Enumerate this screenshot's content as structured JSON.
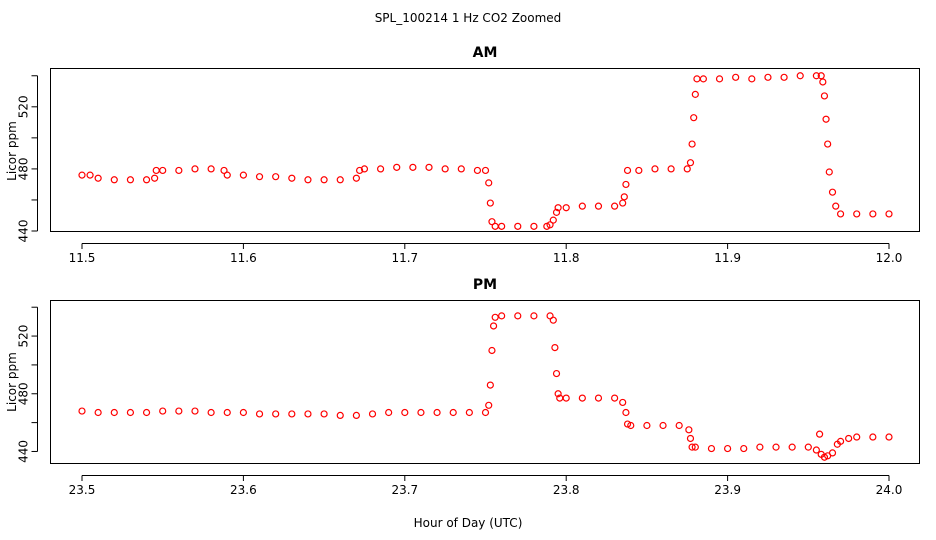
{
  "figure": {
    "title": "SPL_100214  1 Hz CO2 Zoomed",
    "xlabel": "Hour of Day (UTC)"
  },
  "chart_data": [
    {
      "type": "scatter",
      "title": "AM",
      "ylabel": "Licor ppm",
      "xlim": [
        11.5,
        12.0
      ],
      "ylim": [
        440,
        545
      ],
      "xticks": [
        "11.5",
        "11.6",
        "11.7",
        "11.8",
        "11.9",
        "12.0"
      ],
      "yticks": [
        "440",
        "480",
        "520"
      ],
      "series": [
        {
          "color": "#ff0000",
          "marker": "open-circle",
          "x": [
            11.5,
            11.505,
            11.51,
            11.52,
            11.53,
            11.54,
            11.545,
            11.546,
            11.55,
            11.56,
            11.57,
            11.58,
            11.588,
            11.59,
            11.6,
            11.61,
            11.62,
            11.63,
            11.64,
            11.65,
            11.66,
            11.67,
            11.672,
            11.675,
            11.685,
            11.695,
            11.705,
            11.715,
            11.725,
            11.735,
            11.745,
            11.75,
            11.752,
            11.753,
            11.754,
            11.756,
            11.76,
            11.77,
            11.78,
            11.788,
            11.79,
            11.792,
            11.794,
            11.795,
            11.8,
            11.81,
            11.82,
            11.83,
            11.835,
            11.836,
            11.837,
            11.838,
            11.845,
            11.855,
            11.865,
            11.875,
            11.877,
            11.878,
            11.879,
            11.88,
            11.881,
            11.885,
            11.895,
            11.905,
            11.915,
            11.925,
            11.935,
            11.945,
            11.955,
            11.958,
            11.959,
            11.96,
            11.961,
            11.962,
            11.963,
            11.965,
            11.967,
            11.97,
            11.98,
            11.99,
            12.0
          ],
          "y": [
            476,
            476,
            474,
            473,
            473,
            473,
            474,
            479,
            479,
            479,
            480,
            480,
            479,
            476,
            476,
            475,
            475,
            474,
            473,
            473,
            473,
            474,
            479,
            480,
            480,
            481,
            481,
            481,
            480,
            480,
            479,
            479,
            471,
            458,
            446,
            443,
            443,
            443,
            443,
            443,
            444,
            447,
            452,
            455,
            455,
            456,
            456,
            456,
            458,
            462,
            470,
            479,
            479,
            480,
            480,
            480,
            484,
            496,
            513,
            528,
            538,
            538,
            538,
            539,
            538,
            539,
            539,
            540,
            540,
            540,
            536,
            527,
            512,
            496,
            478,
            465,
            456,
            451,
            451,
            451,
            451
          ]
        }
      ]
    },
    {
      "type": "scatter",
      "title": "PM",
      "ylabel": "Licor ppm",
      "xlim": [
        23.5,
        24.0
      ],
      "ylim": [
        432,
        545
      ],
      "xticks": [
        "23.5",
        "23.6",
        "23.7",
        "23.8",
        "23.9",
        "24.0"
      ],
      "yticks": [
        "440",
        "480",
        "520"
      ],
      "series": [
        {
          "color": "#ff0000",
          "marker": "open-circle",
          "x": [
            23.5,
            23.51,
            23.52,
            23.53,
            23.54,
            23.55,
            23.56,
            23.57,
            23.58,
            23.59,
            23.6,
            23.61,
            23.62,
            23.63,
            23.64,
            23.65,
            23.66,
            23.67,
            23.68,
            23.69,
            23.7,
            23.71,
            23.72,
            23.73,
            23.74,
            23.75,
            23.752,
            23.753,
            23.754,
            23.755,
            23.756,
            23.76,
            23.77,
            23.78,
            23.79,
            23.792,
            23.793,
            23.794,
            23.795,
            23.796,
            23.8,
            23.81,
            23.82,
            23.83,
            23.835,
            23.837,
            23.838,
            23.84,
            23.85,
            23.86,
            23.87,
            23.876,
            23.877,
            23.878,
            23.88,
            23.89,
            23.9,
            23.91,
            23.92,
            23.93,
            23.94,
            23.95,
            23.955,
            23.957,
            23.958,
            23.96,
            23.962,
            23.965,
            23.968,
            23.97,
            23.975,
            23.98,
            23.99,
            24.0
          ],
          "y": [
            468,
            467,
            467,
            467,
            467,
            468,
            468,
            468,
            467,
            467,
            467,
            466,
            466,
            466,
            466,
            466,
            465,
            465,
            466,
            467,
            467,
            467,
            467,
            467,
            467,
            467,
            472,
            486,
            510,
            527,
            533,
            534,
            534,
            534,
            534,
            531,
            512,
            494,
            480,
            477,
            477,
            477,
            477,
            477,
            474,
            467,
            459,
            458,
            458,
            458,
            458,
            455,
            449,
            443,
            443,
            442,
            442,
            442,
            443,
            443,
            443,
            443,
            441,
            452,
            438,
            436,
            437,
            439,
            445,
            447,
            449,
            450,
            450,
            450
          ]
        }
      ]
    }
  ]
}
